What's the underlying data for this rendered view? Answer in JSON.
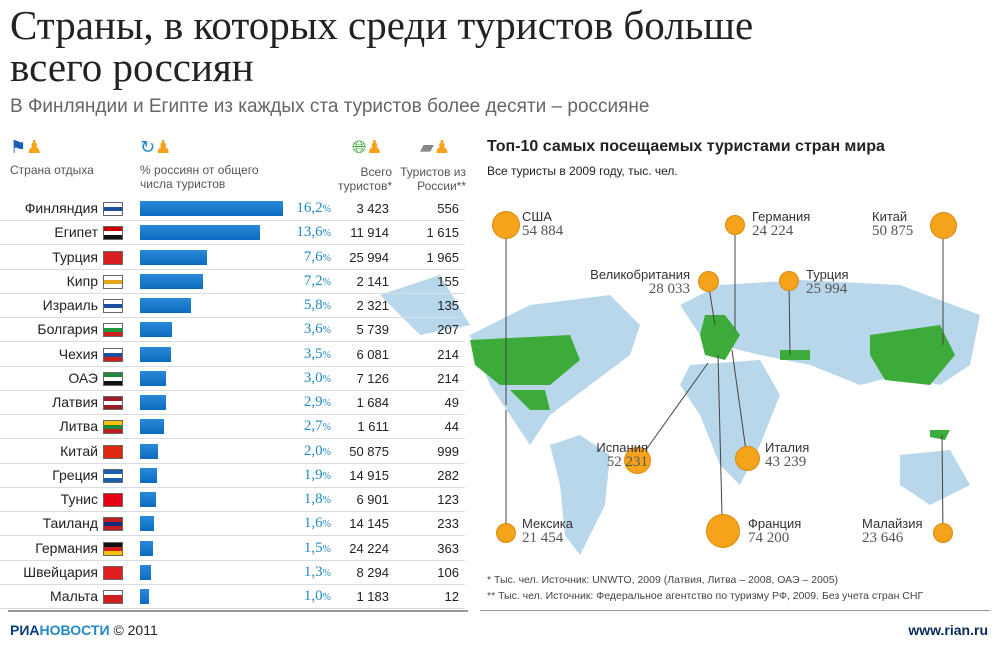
{
  "title": "Страны, в которых среди туристов больше всего россиян",
  "subtitle": "В Финляндии и Египте из каждых ста туристов более десяти – россияне",
  "table": {
    "headers": {
      "country": "Страна отдыха",
      "percent": "% россиян от общего числа туристов",
      "total": "Всего туристов*",
      "russia": "Туристов из России**"
    },
    "pct_suffix": "%"
  },
  "chart_data": {
    "type": "bar",
    "orientation": "horizontal",
    "ylabel": "% россиян от общего числа туристов",
    "categories": [
      "Финляндия",
      "Египет",
      "Турция",
      "Кипр",
      "Израиль",
      "Болгария",
      "Чехия",
      "ОАЭ",
      "Латвия",
      "Литва",
      "Китай",
      "Греция",
      "Тунис",
      "Таиланд",
      "Германия",
      "Швейцария",
      "Мальта"
    ],
    "values": [
      16.2,
      13.6,
      7.6,
      7.2,
      5.8,
      3.6,
      3.5,
      3.0,
      2.9,
      2.7,
      2.0,
      1.9,
      1.8,
      1.6,
      1.5,
      1.3,
      1.0
    ],
    "labels": [
      "16,2",
      "13,6",
      "7,6",
      "7,2",
      "5,8",
      "3,6",
      "3,5",
      "3,0",
      "2,9",
      "2,7",
      "2,0",
      "1,9",
      "1,8",
      "1,6",
      "1,5",
      "1,3",
      "1,0"
    ],
    "total": [
      "3 423",
      "11 914",
      "25 994",
      "2 141",
      "2 321",
      "5 739",
      "6 081",
      "7 126",
      "1 684",
      "1 611",
      "50 875",
      "14 915",
      "6 901",
      "14 145",
      "24 224",
      "8 294",
      "1 183"
    ],
    "from_russia": [
      "556",
      "1 615",
      "1 965",
      "155",
      "135",
      "207",
      "214",
      "214",
      "49",
      "44",
      "999",
      "282",
      "123",
      "233",
      "363",
      "106",
      "12"
    ],
    "bar_color": "#0a6cc0"
  },
  "flags": [
    [
      "#fff",
      "#1a4fa0",
      "#fff"
    ],
    [
      "#c00",
      "#fff",
      "#111"
    ],
    [
      "#d81e1e",
      "#d81e1e",
      "#d81e1e"
    ],
    [
      "#fff",
      "#e3a21a",
      "#fff"
    ],
    [
      "#fff",
      "#1a4fa0",
      "#fff"
    ],
    [
      "#fff",
      "#1a9a3a",
      "#d01e1e"
    ],
    [
      "#fff",
      "#1a4fa0",
      "#d01e1e"
    ],
    [
      "#1a8a3a",
      "#fff",
      "#111"
    ],
    [
      "#9e1b2a",
      "#fff",
      "#9e1b2a"
    ],
    [
      "#f5c400",
      "#1a8a3a",
      "#c01e1e"
    ],
    [
      "#de2910",
      "#de2910",
      "#de2910"
    ],
    [
      "#1a5fb0",
      "#fff",
      "#1a5fb0"
    ],
    [
      "#e70013",
      "#e70013",
      "#e70013"
    ],
    [
      "#c01e1e",
      "#1a2a7a",
      "#c01e1e"
    ],
    [
      "#111",
      "#d01e1e",
      "#f5c400"
    ],
    [
      "#e01e1e",
      "#e01e1e",
      "#e01e1e"
    ],
    [
      "#fff",
      "#d01e1e",
      "#d01e1e"
    ]
  ],
  "map": {
    "title": "Топ-10 самых посещаемых туристами стран мира",
    "subtitle": "Все туристы в 2009 году, тыс. чел.",
    "countries": [
      {
        "name": "США",
        "value": "54 884"
      },
      {
        "name": "Германия",
        "value": "24 224"
      },
      {
        "name": "Китай",
        "value": "50 875"
      },
      {
        "name": "Великобритания",
        "value": "28 033"
      },
      {
        "name": "Турция",
        "value": "25 994"
      },
      {
        "name": "Испания",
        "value": "52 231"
      },
      {
        "name": "Италия",
        "value": "43 239"
      },
      {
        "name": "Мексика",
        "value": "21 454"
      },
      {
        "name": "Франция",
        "value": "74 200"
      },
      {
        "name": "Малайзия",
        "value": "23 646"
      }
    ],
    "land_color": "#b9d7ea",
    "highlight_color": "#3dab3a",
    "dot_color": "#f5a31a"
  },
  "notes": [
    "* Тыс. чел. Источник: UNWTO, 2009 (Латвия, Литва – 2008, ОАЭ – 2005)",
    "** Тыс. чел. Источник: Федеральное агентство по туризму РФ, 2009. Без учета стран СНГ"
  ],
  "footer": {
    "logo_a": "РИА",
    "logo_b": "НОВОСТИ",
    "copyright": "© 2011",
    "url": "www.rian.ru"
  }
}
